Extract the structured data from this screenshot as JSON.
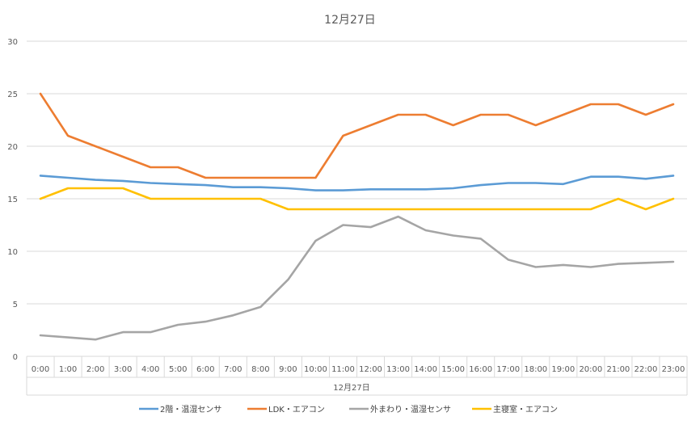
{
  "chart_data": {
    "type": "line",
    "title": "12月27日",
    "x_group_label": "12月27日",
    "categories": [
      "0:00",
      "1:00",
      "2:00",
      "3:00",
      "4:00",
      "5:00",
      "6:00",
      "7:00",
      "8:00",
      "9:00",
      "10:00",
      "11:00",
      "12:00",
      "13:00",
      "14:00",
      "15:00",
      "16:00",
      "17:00",
      "18:00",
      "19:00",
      "20:00",
      "21:00",
      "22:00",
      "23:00"
    ],
    "ylim": [
      0,
      30
    ],
    "yticks": [
      0,
      5,
      10,
      15,
      20,
      25,
      30
    ],
    "grid": true,
    "legend_position": "bottom",
    "series": [
      {
        "name": "2階・温湿センサ",
        "color": "#5B9BD5",
        "values": [
          17.2,
          17.0,
          16.8,
          16.7,
          16.5,
          16.4,
          16.3,
          16.1,
          16.1,
          16.0,
          15.8,
          15.8,
          15.9,
          15.9,
          15.9,
          16.0,
          16.3,
          16.5,
          16.5,
          16.4,
          17.1,
          17.1,
          16.9,
          17.2
        ]
      },
      {
        "name": "LDK・エアコン",
        "color": "#ED7D31",
        "values": [
          25,
          21,
          20,
          19,
          18,
          18,
          17,
          17,
          17,
          17,
          17,
          21,
          22,
          23,
          23,
          22,
          23,
          23,
          22,
          23,
          24,
          24,
          23,
          24
        ]
      },
      {
        "name": "外まわり・温湿センサ",
        "color": "#A5A5A5",
        "values": [
          2.0,
          1.8,
          1.6,
          2.3,
          2.3,
          3.0,
          3.3,
          3.9,
          4.7,
          7.3,
          11.0,
          12.5,
          12.3,
          13.3,
          12.0,
          11.5,
          11.2,
          9.2,
          8.5,
          8.7,
          8.5,
          8.8,
          8.9,
          9.0
        ]
      },
      {
        "name": "主寝室・エアコン",
        "color": "#FFC000",
        "values": [
          15,
          16,
          16,
          16,
          15,
          15,
          15,
          15,
          15,
          14,
          14,
          14,
          14,
          14,
          14,
          14,
          14,
          14,
          14,
          14,
          14,
          15,
          14,
          15
        ]
      }
    ]
  }
}
